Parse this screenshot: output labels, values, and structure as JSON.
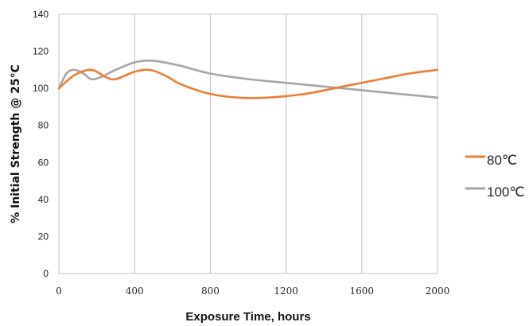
{
  "chart_data": {
    "type": "line",
    "xlabel": "Exposure Time, hours",
    "ylabel": "% Initial Strength @ 25°C",
    "xlim": [
      0,
      2000
    ],
    "ylim": [
      0,
      140
    ],
    "x_ticks": [
      "0",
      "400",
      "800",
      "1200",
      "1600",
      "2000"
    ],
    "y_ticks": [
      "0",
      "20",
      "40",
      "60",
      "80",
      "100",
      "120",
      "140"
    ],
    "grid": "vertical",
    "legend_position": "right",
    "series": [
      {
        "name": "80℃",
        "color": "#ED7D31",
        "x": [
          0,
          80,
          170,
          250,
          300,
          400,
          480,
          560,
          650,
          800,
          950,
          1100,
          1300,
          1500,
          1700,
          1850,
          2000
        ],
        "y": [
          100,
          107,
          110,
          106,
          105,
          109,
          110,
          107,
          102,
          97,
          95,
          95,
          97,
          101,
          105,
          108,
          110
        ]
      },
      {
        "name": "100℃",
        "color": "#A5A5A5",
        "x": [
          0,
          40,
          80,
          130,
          170,
          220,
          300,
          400,
          480,
          560,
          650,
          800,
          1000,
          1200,
          1400,
          1600,
          1800,
          2000
        ],
        "y": [
          100,
          108,
          110,
          108,
          105,
          106,
          110,
          114,
          115,
          114,
          112,
          108,
          105,
          103,
          101,
          99,
          97,
          95
        ]
      }
    ]
  }
}
